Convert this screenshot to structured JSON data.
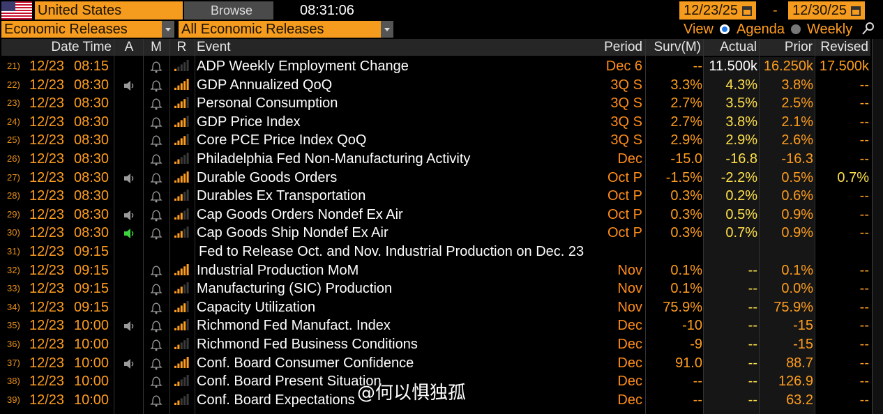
{
  "header": {
    "country": "United States",
    "browse": "Browse",
    "time": "08:31:06",
    "start_date": "12/23/25",
    "date_separator": "-",
    "end_date": "12/30/25"
  },
  "filters": {
    "category": "Economic Releases",
    "releases": "All Economic Releases",
    "view_label": "View",
    "views": [
      "Agenda",
      "Weekly"
    ]
  },
  "columns": [
    "Date Time",
    "A",
    "M",
    "R",
    "Event",
    "Period",
    "Surv(M)",
    "Actual",
    "Prior",
    "Revised"
  ],
  "rows": [
    {
      "num": "21)",
      "date": "12/23",
      "time": "08:15",
      "event": "ADP Weekly Employment Change",
      "period": "Dec 6",
      "surv": "--",
      "actual": "11.500k",
      "prior": "16.250k",
      "revised": "17.500k",
      "relevance": 1
    },
    {
      "num": "22)",
      "date": "12/23",
      "time": "08:30",
      "event": "GDP Annualized QoQ",
      "period": "3Q S",
      "surv": "3.3%",
      "actual": "4.3%",
      "prior": "3.8%",
      "revised": "--",
      "relevance": 5,
      "speaker": "#9a9a9a"
    },
    {
      "num": "23)",
      "date": "12/23",
      "time": "08:30",
      "event": "Personal Consumption",
      "period": "3Q S",
      "surv": "2.7%",
      "actual": "3.5%",
      "prior": "2.5%",
      "revised": "--",
      "relevance": 4
    },
    {
      "num": "24)",
      "date": "12/23",
      "time": "08:30",
      "event": "GDP Price Index",
      "period": "3Q S",
      "surv": "2.7%",
      "actual": "3.8%",
      "prior": "2.1%",
      "revised": "--",
      "relevance": 4
    },
    {
      "num": "25)",
      "date": "12/23",
      "time": "08:30",
      "event": "Core PCE Price Index QoQ",
      "period": "3Q S",
      "surv": "2.9%",
      "actual": "2.9%",
      "prior": "2.6%",
      "revised": "--",
      "relevance": 4
    },
    {
      "num": "26)",
      "date": "12/23",
      "time": "08:30",
      "event": "Philadelphia Fed Non-Manufacturing Activity",
      "period": "Dec",
      "surv": "-15.0",
      "actual": "-16.8",
      "prior": "-16.3",
      "revised": "--",
      "relevance": 2
    },
    {
      "num": "27)",
      "date": "12/23",
      "time": "08:30",
      "event": "Durable Goods Orders",
      "period": "Oct P",
      "surv": "-1.5%",
      "actual": "-2.2%",
      "prior": "0.5%",
      "revised": "0.7%",
      "relevance": 5,
      "speaker": "#9a9a9a"
    },
    {
      "num": "28)",
      "date": "12/23",
      "time": "08:30",
      "event": "Durables Ex Transportation",
      "period": "Oct P",
      "surv": "0.3%",
      "actual": "0.2%",
      "prior": "0.6%",
      "revised": "--",
      "relevance": 3
    },
    {
      "num": "29)",
      "date": "12/23",
      "time": "08:30",
      "event": "Cap Goods Orders Nondef Ex Air",
      "period": "Oct P",
      "surv": "0.3%",
      "actual": "0.5%",
      "prior": "0.9%",
      "revised": "--",
      "relevance": 3,
      "speaker": "#9a9a9a"
    },
    {
      "num": "30)",
      "date": "12/23",
      "time": "08:30",
      "event": "Cap Goods Ship Nondef Ex Air",
      "period": "Oct P",
      "surv": "0.3%",
      "actual": "0.7%",
      "prior": "0.9%",
      "revised": "--",
      "relevance": 3,
      "speaker": "#3cd63c"
    },
    {
      "num": "31)",
      "date": "12/23",
      "time": "09:15",
      "headline": "Fed to Release Oct. and Nov. Industrial Production on Dec. 23"
    },
    {
      "num": "32)",
      "date": "12/23",
      "time": "09:15",
      "event": "Industrial Production MoM",
      "period": "Nov",
      "surv": "0.1%",
      "actual": "--",
      "prior": "0.1%",
      "revised": "--",
      "relevance": 5
    },
    {
      "num": "33)",
      "date": "12/23",
      "time": "09:15",
      "event": "Manufacturing (SIC) Production",
      "period": "Nov",
      "surv": "0.1%",
      "actual": "--",
      "prior": "0.0%",
      "revised": "--",
      "relevance": 3
    },
    {
      "num": "34)",
      "date": "12/23",
      "time": "09:15",
      "event": "Capacity Utilization",
      "period": "Nov",
      "surv": "75.9%",
      "actual": "--",
      "prior": "75.9%",
      "revised": "--",
      "relevance": 4
    },
    {
      "num": "35)",
      "date": "12/23",
      "time": "10:00",
      "event": "Richmond Fed Manufact. Index",
      "period": "Dec",
      "surv": "-10",
      "actual": "--",
      "prior": "-15",
      "revised": "--",
      "relevance": 4,
      "speaker": "#9a9a9a"
    },
    {
      "num": "36)",
      "date": "12/23",
      "time": "10:00",
      "event": "Richmond Fed Business Conditions",
      "period": "Dec",
      "surv": "-9",
      "actual": "--",
      "prior": "-15",
      "revised": "--",
      "relevance": 2
    },
    {
      "num": "37)",
      "date": "12/23",
      "time": "10:00",
      "event": "Conf. Board Consumer Confidence",
      "period": "Dec",
      "surv": "91.0",
      "actual": "--",
      "prior": "88.7",
      "revised": "--",
      "relevance": 5,
      "speaker": "#9a9a9a"
    },
    {
      "num": "38)",
      "date": "12/23",
      "time": "10:00",
      "event": "Conf. Board Present Situation",
      "period": "Dec",
      "surv": "--",
      "actual": "--",
      "prior": "126.9",
      "revised": "--",
      "relevance": 2
    },
    {
      "num": "39)",
      "date": "12/23",
      "time": "10:00",
      "event": "Conf. Board Expectations",
      "period": "Dec",
      "surv": "--",
      "actual": "--",
      "prior": "63.2",
      "revised": "--",
      "relevance": 2
    }
  ],
  "watermark": "@何以惧独孤"
}
